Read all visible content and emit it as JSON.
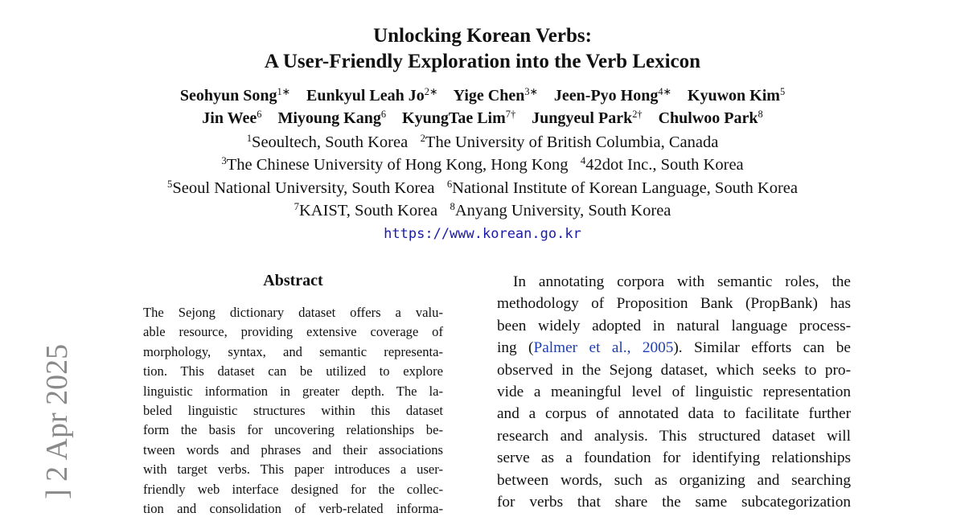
{
  "header": {
    "title_lines": [
      "Unlocking Korean Verbs:",
      "A User-Friendly Exploration into the Verb Lexicon"
    ],
    "author_lines": [
      [
        {
          "name": "Seohyun Song",
          "sup": "1∗"
        },
        {
          "name": "Eunkyul Leah Jo",
          "sup": "2∗"
        },
        {
          "name": "Yige Chen",
          "sup": "3∗"
        },
        {
          "name": "Jeen-Pyo Hong",
          "sup": "4∗"
        },
        {
          "name": "Kyuwon Kim",
          "sup": "5"
        }
      ],
      [
        {
          "name": "Jin Wee",
          "sup": "6"
        },
        {
          "name": "Miyoung Kang",
          "sup": "6"
        },
        {
          "name": "KyungTae Lim",
          "sup": "7†"
        },
        {
          "name": "Jungyeul Park",
          "sup": "2†"
        },
        {
          "name": "Chulwoo Park",
          "sup": "8"
        }
      ]
    ],
    "affiliation_lines": [
      [
        {
          "num": "1",
          "name": "Seoultech, South Korea"
        },
        {
          "num": "2",
          "name": "The University of British Columbia, Canada"
        }
      ],
      [
        {
          "num": "3",
          "name": "The Chinese University of Hong Kong, Hong Kong"
        },
        {
          "num": "4",
          "name": "42dot Inc., South Korea"
        }
      ],
      [
        {
          "num": "5",
          "name": "Seoul National University, South Korea"
        },
        {
          "num": "6",
          "name": "National Institute of Korean Language, South Korea"
        }
      ],
      [
        {
          "num": "7",
          "name": "KAIST, South Korea"
        },
        {
          "num": "8",
          "name": "Anyang University, South Korea"
        }
      ]
    ],
    "url": "https://www.korean.go.kr"
  },
  "abstract": {
    "heading": "Abstract",
    "lines": [
      "The Sejong dictionary dataset offers a valu-",
      "able resource, providing extensive coverage of",
      "morphology, syntax, and semantic representa-",
      "tion.  This dataset can be utilized to explore",
      "linguistic information in greater depth. The la-",
      "beled linguistic structures within this dataset",
      "form the basis for uncovering relationships be-",
      "tween words and phrases and their associations",
      "with target verbs. This paper introduces a user-",
      "friendly web interface designed for the collec-",
      "tion and consolidation of verb-related informa-"
    ]
  },
  "right_column": {
    "lines": [
      "In annotating corpora with semantic roles, the",
      "methodology of Proposition Bank (PropBank) has",
      "been widely adopted in natural language process-",
      {
        "before": "ing (",
        "link": "Palmer et al., 2005",
        "after": ").  Similar efforts can be"
      },
      "observed in the Sejong dataset, which seeks to pro-",
      "vide a meaningful level of linguistic representation",
      "and a corpus of annotated data to facilitate further",
      "research and analysis. This structured dataset will",
      "serve as a foundation for identifying relationships",
      "between words, such as organizing and searching",
      "for verbs that share the same subcategorization"
    ]
  },
  "arxiv_stamp": "] 2 Apr 2025"
}
